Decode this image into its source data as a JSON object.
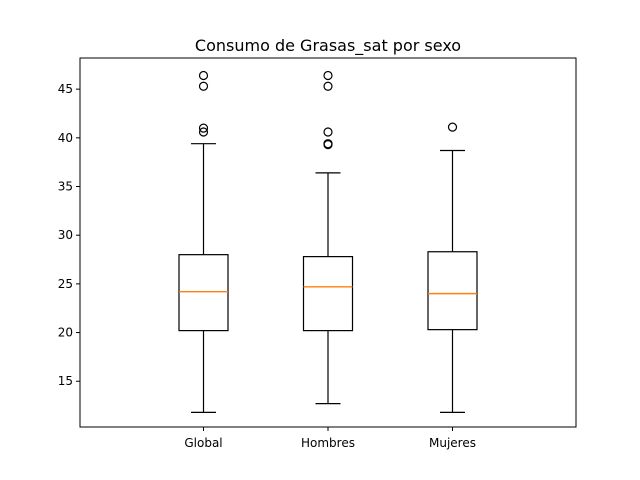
{
  "chart_data": {
    "type": "boxplot",
    "title": "Consumo de Grasas_sat por sexo",
    "xlabel": "",
    "ylabel": "",
    "categories": [
      "Global",
      "Hombres",
      "Mujeres"
    ],
    "ylim": [
      10.3,
      48.2
    ],
    "yticks": [
      15,
      20,
      25,
      30,
      35,
      40,
      45
    ],
    "grid": false,
    "median_color": "#ff7f0e",
    "boxes": [
      {
        "name": "Global",
        "whisker_low": 11.8,
        "q1": 20.2,
        "median": 24.2,
        "q3": 28.0,
        "whisker_high": 39.4,
        "fliers": [
          40.6,
          41.0,
          45.3,
          46.4
        ]
      },
      {
        "name": "Hombres",
        "whisker_low": 12.7,
        "q1": 20.2,
        "median": 24.7,
        "q3": 27.8,
        "whisker_high": 36.4,
        "fliers": [
          39.3,
          39.4,
          40.6,
          45.3,
          46.4
        ]
      },
      {
        "name": "Mujeres",
        "whisker_low": 11.8,
        "q1": 20.3,
        "median": 24.0,
        "q3": 28.3,
        "whisker_high": 38.7,
        "fliers": [
          41.1
        ]
      }
    ]
  }
}
